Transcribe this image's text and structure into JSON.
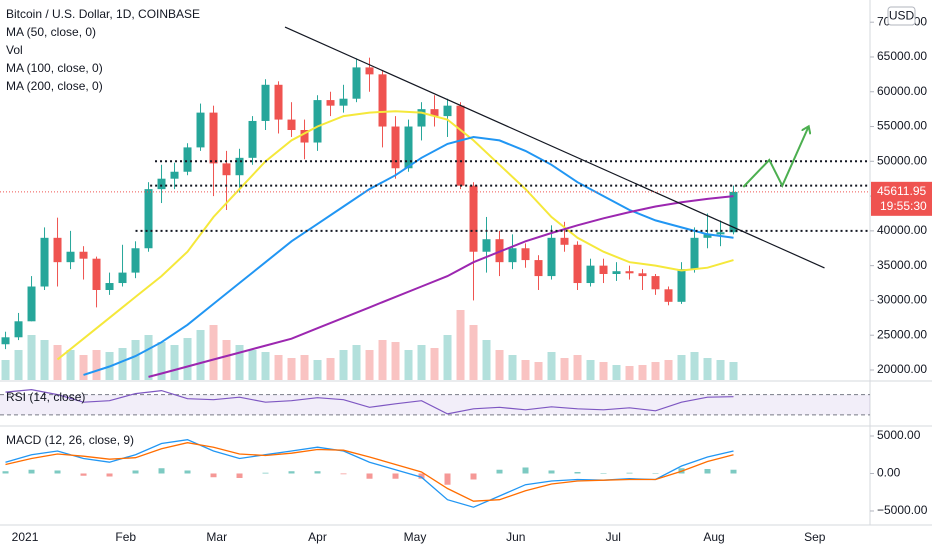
{
  "chart_data": [
    {
      "type": "candlestick",
      "title": "Bitcoin / U.S. Dollar, 1D, COINBASE",
      "currency": "USD",
      "x": [
        -6,
        -2,
        2,
        6,
        10,
        14,
        18,
        22,
        26,
        30,
        34,
        38,
        42,
        46,
        50,
        54,
        58,
        62,
        66,
        70,
        74,
        78,
        82,
        86,
        90,
        94,
        98,
        102,
        106,
        110,
        114,
        118,
        122,
        126,
        130,
        134,
        138,
        142,
        146,
        150,
        154,
        158,
        162,
        166,
        170,
        174,
        178,
        182,
        186,
        190,
        194,
        198,
        202,
        206,
        210,
        214,
        218
      ],
      "open": [
        23700,
        24700,
        27000,
        32000,
        39000,
        35500,
        37000,
        36000,
        31500,
        32500,
        34000,
        37500,
        46000,
        47500,
        48500,
        52000,
        57000,
        49700,
        48000,
        50500,
        55800,
        61000,
        56000,
        54500,
        52700,
        58800,
        58000,
        59000,
        63500,
        62500,
        55000,
        49000,
        55000,
        57500,
        56500,
        58000,
        46500,
        37000,
        38800,
        35500,
        37500,
        35800,
        33500,
        39000,
        38000,
        32500,
        35000,
        33800,
        34200,
        33900,
        33500,
        31600,
        29800,
        34500,
        39000,
        39500,
        39800
      ],
      "high": [
        25500,
        28200,
        33500,
        40500,
        41900,
        40000,
        37800,
        36300,
        34000,
        38000,
        38500,
        47000,
        49500,
        49800,
        52600,
        58300,
        58000,
        51500,
        51800,
        56500,
        61800,
        61500,
        58500,
        56000,
        59500,
        60000,
        61000,
        64800,
        64900,
        63000,
        56500,
        56000,
        58500,
        59500,
        59000,
        58500,
        47000,
        42000,
        40000,
        39500,
        38200,
        36500,
        40800,
        41300,
        38500,
        36000,
        36000,
        35500,
        35000,
        34500,
        33800,
        32000,
        35500,
        40500,
        42500,
        41500,
        46500
      ],
      "low": [
        23000,
        24300,
        27000,
        31500,
        32000,
        34500,
        33000,
        29000,
        30800,
        32000,
        33200,
        37000,
        44000,
        46000,
        48000,
        51500,
        45000,
        43000,
        45500,
        49500,
        54500,
        54000,
        53500,
        50300,
        51500,
        56500,
        57000,
        58500,
        60000,
        52000,
        47500,
        48500,
        53000,
        55000,
        53500,
        46000,
        30000,
        34000,
        33500,
        34500,
        34700,
        31500,
        33000,
        37000,
        31500,
        32000,
        32500,
        32800,
        33000,
        31500,
        30800,
        29300,
        29500,
        34000,
        37500,
        37800,
        39500
      ],
      "close": [
        24700,
        27000,
        32000,
        39000,
        35500,
        37000,
        36000,
        31500,
        32500,
        34000,
        37500,
        46000,
        47500,
        48500,
        52000,
        57000,
        49700,
        48000,
        50500,
        55800,
        61000,
        56000,
        54500,
        52700,
        58800,
        58000,
        59000,
        63500,
        62500,
        55000,
        49000,
        55000,
        57500,
        56500,
        58000,
        46500,
        37000,
        38800,
        35500,
        37500,
        35800,
        33500,
        39000,
        38000,
        32500,
        35000,
        33800,
        34200,
        33900,
        33500,
        31600,
        29800,
        34500,
        39000,
        39500,
        39800,
        45600
      ],
      "up_color": "#26a69a",
      "down_color": "#ef5350",
      "volume": {
        "name": "Vol",
        "vlim": [
          0,
          100
        ],
        "values": [
          20,
          30,
          45,
          40,
          35,
          30,
          25,
          30,
          28,
          32,
          40,
          45,
          38,
          35,
          42,
          50,
          55,
          40,
          35,
          30,
          28,
          25,
          22,
          25,
          20,
          22,
          30,
          35,
          30,
          40,
          38,
          30,
          35,
          32,
          45,
          70,
          55,
          40,
          30,
          25,
          20,
          18,
          28,
          22,
          25,
          20,
          18,
          15,
          14,
          15,
          18,
          20,
          25,
          28,
          22,
          20,
          18
        ]
      },
      "series": [
        {
          "name": "MA (50, close, 0)",
          "color": "#f5e83b",
          "x": [
            10,
            18,
            26,
            34,
            42,
            50,
            58,
            66,
            74,
            82,
            90,
            98,
            106,
            114,
            122,
            130,
            138,
            146,
            154,
            162,
            170,
            178,
            186,
            194,
            202,
            210,
            218
          ],
          "values": [
            21500,
            24500,
            27500,
            30500,
            33500,
            37000,
            42000,
            46000,
            50000,
            53000,
            55000,
            56500,
            57000,
            57200,
            57000,
            56000,
            53000,
            49500,
            46000,
            42000,
            39000,
            37000,
            35500,
            35000,
            34300,
            34700,
            35800
          ]
        },
        {
          "name": "MA (100, close, 0)",
          "color": "#2196f3",
          "x": [
            18,
            26,
            34,
            42,
            50,
            58,
            66,
            74,
            82,
            90,
            98,
            106,
            114,
            122,
            130,
            138,
            146,
            154,
            162,
            170,
            178,
            186,
            194,
            202,
            210,
            218
          ],
          "values": [
            19300,
            20500,
            22000,
            24000,
            26500,
            29500,
            32500,
            35500,
            38500,
            41000,
            43500,
            46000,
            48000,
            50500,
            52500,
            53500,
            53000,
            51500,
            49500,
            47000,
            45000,
            43000,
            41500,
            40500,
            39500,
            39000
          ]
        },
        {
          "name": "MA (200, close, 0)",
          "color": "#9c27b0",
          "x": [
            38,
            42,
            50,
            58,
            66,
            74,
            82,
            90,
            98,
            106,
            114,
            122,
            130,
            138,
            146,
            154,
            162,
            170,
            178,
            186,
            194,
            202,
            210,
            218
          ],
          "values": [
            19000,
            19500,
            20500,
            21500,
            22500,
            23500,
            24500,
            26000,
            27500,
            29000,
            30500,
            32000,
            33500,
            35500,
            37000,
            38500,
            39700,
            40800,
            41800,
            42700,
            43500,
            44100,
            44600,
            45000
          ]
        }
      ],
      "last_price": 45611.95,
      "countdown": "19:55:30",
      "levels": [
        50000,
        46500,
        40000
      ],
      "level_starts": [
        40,
        38.5,
        34
      ],
      "trendline": {
        "x": [
          80,
          246
        ],
        "values": [
          69300,
          34670
        ]
      },
      "projection": {
        "color": "#4caf50",
        "x": [
          221,
          229,
          233,
          241
        ],
        "values": [
          46300,
          50200,
          46500,
          54900
        ]
      },
      "xlim": [
        -7.7,
        260
      ],
      "ylim": [
        18560,
        73190
      ],
      "yticks": [
        {
          "value": 20000,
          "label": "20000.00"
        },
        {
          "value": 25000,
          "label": "25000.00"
        },
        {
          "value": 30000,
          "label": "30000.00"
        },
        {
          "value": 35000,
          "label": "35000.00"
        },
        {
          "value": 40000,
          "label": "40000.00"
        },
        {
          "value": 45000,
          "label": "45000.00"
        },
        {
          "value": 50000,
          "label": "50000.00"
        },
        {
          "value": 55000,
          "label": "55000.00"
        },
        {
          "value": 60000,
          "label": "60000.00"
        },
        {
          "value": 65000,
          "label": "65000.00"
        },
        {
          "value": 70000,
          "label": "70000.00"
        }
      ],
      "xticks": [
        {
          "value": 0,
          "label": "2021"
        },
        {
          "value": 31,
          "label": "Feb"
        },
        {
          "value": 59,
          "label": "Mar"
        },
        {
          "value": 90,
          "label": "Apr"
        },
        {
          "value": 120,
          "label": "May"
        },
        {
          "value": 151,
          "label": "Jun"
        },
        {
          "value": 181,
          "label": "Jul"
        },
        {
          "value": 212,
          "label": "Aug"
        },
        {
          "value": 243,
          "label": "Sep"
        }
      ]
    },
    {
      "type": "line",
      "title": "RSI (14, close)",
      "color": "#7e57c2",
      "band": [
        30,
        70
      ],
      "ylim": [
        10,
        95
      ],
      "x": [
        -6,
        2,
        10,
        18,
        26,
        34,
        42,
        50,
        58,
        66,
        74,
        82,
        90,
        98,
        106,
        114,
        122,
        130,
        138,
        146,
        154,
        162,
        170,
        178,
        186,
        194,
        202,
        210,
        218
      ],
      "values": [
        75,
        80,
        70,
        55,
        58,
        72,
        78,
        62,
        60,
        65,
        55,
        58,
        64,
        60,
        45,
        52,
        58,
        32,
        42,
        45,
        40,
        46,
        42,
        40,
        44,
        38,
        55,
        65,
        66
      ]
    },
    {
      "type": "macd",
      "title": "MACD (12, 26, close, 9)",
      "ylim": [
        -6870,
        6200
      ],
      "yticks": [
        {
          "value": 5000,
          "label": "5000.00"
        },
        {
          "value": 0,
          "label": "0.00"
        },
        {
          "value": -5000,
          "label": "−5000.00"
        }
      ],
      "x": [
        -6,
        2,
        10,
        18,
        26,
        34,
        42,
        50,
        58,
        66,
        74,
        82,
        90,
        98,
        106,
        114,
        122,
        130,
        138,
        146,
        154,
        162,
        170,
        178,
        186,
        194,
        202,
        210,
        218
      ],
      "histogram": {
        "up_color": "#26a69a",
        "down_color": "#ef5350",
        "values": [
          300,
          500,
          400,
          -300,
          -400,
          400,
          700,
          400,
          -500,
          -600,
          100,
          300,
          300,
          -100,
          -700,
          -700,
          -700,
          -1500,
          -800,
          500,
          800,
          400,
          200,
          0,
          100,
          0,
          700,
          600,
          500
        ]
      },
      "series": [
        {
          "color": "#2196f3",
          "values": [
            1500,
            2500,
            3000,
            2000,
            1500,
            2500,
            4000,
            4500,
            3000,
            2000,
            2500,
            3000,
            3500,
            3000,
            1500,
            500,
            -500,
            -3500,
            -4500,
            -3000,
            -1500,
            -1000,
            -800,
            -900,
            -700,
            -800,
            1000,
            2200,
            3000
          ]
        },
        {
          "color": "#ff6d00",
          "values": [
            1200,
            2000,
            2600,
            2300,
            1900,
            2100,
            3300,
            4100,
            3500,
            2600,
            2400,
            2700,
            3200,
            3100,
            2200,
            1200,
            200,
            -2000,
            -3700,
            -3500,
            -2300,
            -1400,
            -1000,
            -900,
            -800,
            -800,
            300,
            1600,
            2500
          ]
        }
      ]
    }
  ]
}
